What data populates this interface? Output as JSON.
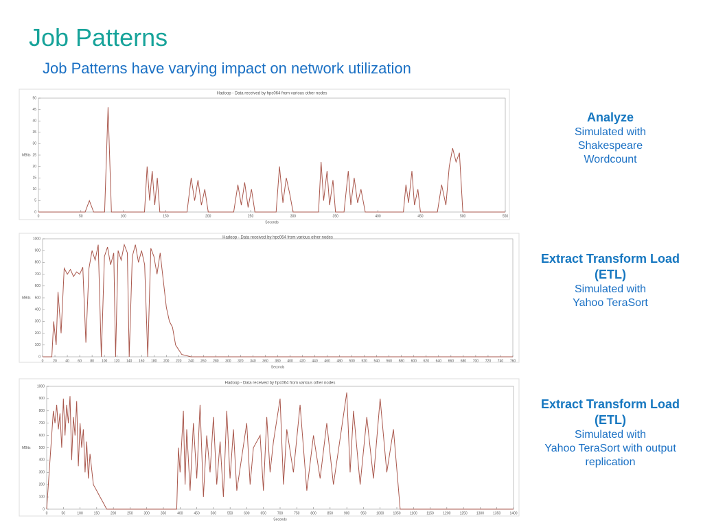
{
  "header": {
    "title": "Job Patterns",
    "subtitle": "Job Patterns have varying impact on network utilization"
  },
  "panels": [
    {
      "heading": [
        "Analyze"
      ],
      "text": [
        "Simulated with",
        "Shakespeare",
        "Wordcount"
      ]
    },
    {
      "heading": [
        "Extract Transform Load",
        "(ETL)"
      ],
      "text": [
        "Simulated with",
        "Yahoo TeraSort"
      ]
    },
    {
      "heading": [
        "Extract Transform Load",
        "(ETL)"
      ],
      "text": [
        "Simulated with",
        "Yahoo TeraSort with output",
        "replication"
      ]
    }
  ],
  "chart_data": [
    {
      "type": "line",
      "title": "Hadoop - Data received by hpc064 from various other nodes",
      "x_label": "Seconds",
      "y_label": "MBits",
      "xlim": [
        0,
        550
      ],
      "xticks": [
        0,
        50,
        100,
        150,
        200,
        250,
        300,
        350,
        400,
        450,
        500,
        550
      ],
      "ylim": [
        0,
        50
      ],
      "yticks": [
        0,
        5,
        10,
        15,
        20,
        25,
        30,
        35,
        40,
        45,
        50
      ],
      "grid": false,
      "x": [
        0,
        55,
        60,
        65,
        78,
        82,
        86,
        125,
        128,
        131,
        134,
        137,
        140,
        143,
        175,
        180,
        184,
        188,
        192,
        196,
        200,
        230,
        235,
        239,
        243,
        247,
        251,
        255,
        280,
        284,
        288,
        292,
        296,
        300,
        330,
        333,
        336,
        340,
        343,
        347,
        350,
        360,
        365,
        368,
        372,
        376,
        380,
        385,
        430,
        433,
        436,
        440,
        443,
        447,
        450,
        470,
        475,
        480,
        484,
        488,
        492,
        496,
        500,
        550
      ],
      "series": [
        {
          "color": "#a9574c",
          "values": [
            0,
            0,
            5,
            0,
            0,
            46,
            0,
            0,
            20,
            5,
            18,
            3,
            15,
            0,
            0,
            15,
            5,
            14,
            3,
            10,
            0,
            0,
            12,
            3,
            13,
            2,
            10,
            0,
            0,
            20,
            4,
            15,
            8,
            0,
            0,
            22,
            5,
            18,
            3,
            14,
            0,
            0,
            18,
            3,
            15,
            4,
            10,
            0,
            0,
            12,
            4,
            18,
            3,
            10,
            0,
            0,
            12,
            3,
            20,
            28,
            22,
            26,
            0,
            0
          ]
        }
      ]
    },
    {
      "type": "line",
      "title": "Hadoop - Data received by hpc064 from various other nodes",
      "x_label": "Seconds",
      "y_label": "MBits",
      "xlim": [
        0,
        760
      ],
      "xticks": [
        0,
        20,
        40,
        60,
        80,
        100,
        120,
        140,
        160,
        180,
        200,
        220,
        240,
        260,
        280,
        300,
        320,
        340,
        360,
        380,
        400,
        420,
        440,
        460,
        480,
        500,
        520,
        540,
        560,
        580,
        600,
        620,
        640,
        660,
        680,
        700,
        720,
        740,
        760
      ],
      "ylim": [
        0,
        1000
      ],
      "yticks": [
        0,
        100,
        200,
        300,
        400,
        500,
        600,
        700,
        800,
        900,
        1000
      ],
      "grid": false,
      "x": [
        0,
        15,
        18,
        22,
        25,
        30,
        35,
        40,
        45,
        50,
        55,
        60,
        65,
        70,
        75,
        80,
        85,
        90,
        95,
        100,
        105,
        110,
        115,
        118,
        122,
        127,
        132,
        137,
        140,
        145,
        150,
        155,
        160,
        165,
        170,
        175,
        180,
        185,
        190,
        195,
        200,
        205,
        210,
        215,
        225,
        240,
        760
      ],
      "series": [
        {
          "color": "#a9574c",
          "values": [
            0,
            0,
            300,
            100,
            550,
            200,
            750,
            700,
            740,
            680,
            720,
            700,
            760,
            120,
            750,
            900,
            820,
            950,
            0,
            850,
            930,
            780,
            880,
            0,
            900,
            820,
            950,
            880,
            0,
            850,
            950,
            800,
            900,
            780,
            0,
            920,
            850,
            700,
            880,
            650,
            420,
            300,
            250,
            100,
            20,
            0,
            0
          ]
        }
      ]
    },
    {
      "type": "line",
      "title": "Hadoop - Data received by hpc064 from various other nodes",
      "x_label": "Seconds",
      "y_label": "MBits",
      "xlim": [
        0,
        1400
      ],
      "xticks": [
        0,
        50,
        100,
        150,
        200,
        250,
        300,
        350,
        400,
        450,
        500,
        550,
        600,
        650,
        700,
        750,
        800,
        850,
        900,
        950,
        1000,
        1050,
        1100,
        1150,
        1200,
        1250,
        1300,
        1350,
        1400
      ],
      "ylim": [
        0,
        1000
      ],
      "yticks": [
        0,
        100,
        200,
        300,
        400,
        500,
        600,
        700,
        800,
        900,
        1000
      ],
      "grid": false,
      "x": [
        0,
        20,
        25,
        30,
        35,
        40,
        45,
        50,
        55,
        60,
        65,
        70,
        75,
        80,
        85,
        90,
        95,
        100,
        105,
        110,
        115,
        120,
        125,
        130,
        140,
        150,
        160,
        170,
        180,
        390,
        395,
        400,
        410,
        415,
        420,
        430,
        440,
        450,
        460,
        470,
        480,
        490,
        500,
        510,
        520,
        530,
        540,
        550,
        560,
        570,
        600,
        610,
        620,
        640,
        650,
        660,
        670,
        680,
        700,
        710,
        720,
        740,
        760,
        780,
        800,
        820,
        840,
        860,
        900,
        910,
        920,
        940,
        960,
        980,
        1000,
        1020,
        1040,
        1060,
        1400
      ],
      "series": [
        {
          "color": "#a9574c",
          "values": [
            0,
            800,
            700,
            850,
            650,
            780,
            500,
            900,
            600,
            850,
            700,
            920,
            400,
            750,
            600,
            880,
            350,
            700,
            500,
            650,
            300,
            550,
            250,
            450,
            200,
            150,
            100,
            50,
            0,
            0,
            500,
            300,
            800,
            200,
            650,
            150,
            700,
            250,
            850,
            100,
            600,
            300,
            750,
            200,
            550,
            100,
            800,
            250,
            650,
            150,
            700,
            200,
            500,
            600,
            150,
            750,
            300,
            550,
            900,
            200,
            650,
            300,
            850,
            150,
            600,
            250,
            700,
            200,
            950,
            300,
            800,
            200,
            750,
            250,
            900,
            300,
            650,
            0,
            0
          ]
        }
      ]
    }
  ]
}
